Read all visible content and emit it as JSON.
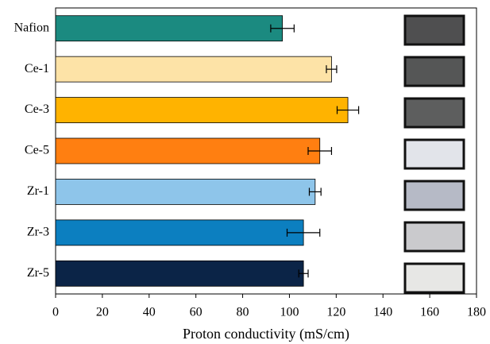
{
  "chart_data": {
    "type": "bar",
    "orientation": "horizontal",
    "categories": [
      "Nafion",
      "Ce-1",
      "Ce-3",
      "Ce-5",
      "Zr-1",
      "Zr-3",
      "Zr-5"
    ],
    "values": [
      97,
      118,
      125,
      113,
      111,
      106,
      106
    ],
    "errors": [
      5,
      2.2,
      4.6,
      5,
      2.5,
      7,
      2
    ],
    "colors": [
      "#1b8a80",
      "#fde3a7",
      "#ffb300",
      "#ff7f11",
      "#8ec5ea",
      "#0c7fc0",
      "#0b2447"
    ],
    "xlabel": "Proton conductivity (mS/cm)",
    "xlim": [
      0,
      180
    ],
    "xticks": [
      0,
      20,
      40,
      60,
      80,
      100,
      120,
      140,
      160,
      180
    ]
  }
}
